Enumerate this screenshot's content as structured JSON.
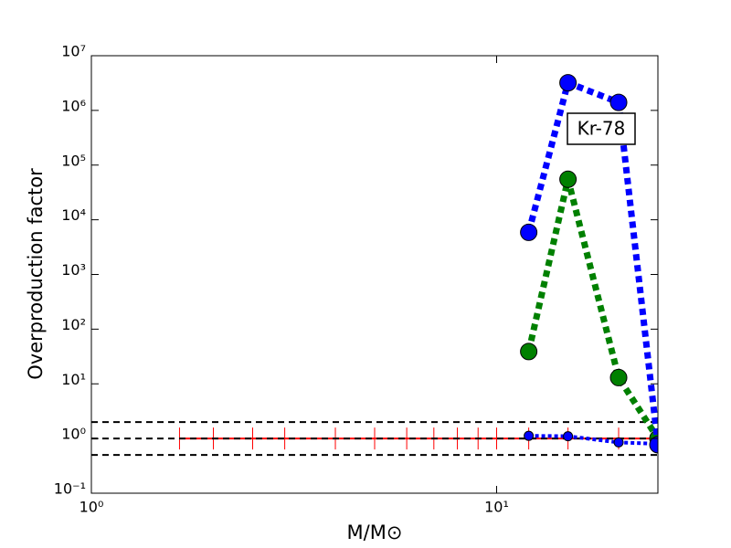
{
  "chart_data": {
    "type": "line",
    "xlabel": "M/M⊙",
    "ylabel": "Overproduction factor",
    "xscale": "log",
    "yscale": "log",
    "xlim": [
      1,
      25
    ],
    "ylim": [
      0.1,
      10000000
    ],
    "xticks": [
      {
        "value": 1,
        "label": "10⁰"
      },
      {
        "value": 10,
        "label": "10¹"
      }
    ],
    "yticks": [
      {
        "value": 0.1,
        "label": "10⁻¹"
      },
      {
        "value": 1,
        "label": "10⁰"
      },
      {
        "value": 10,
        "label": "10¹"
      },
      {
        "value": 100,
        "label": "10²"
      },
      {
        "value": 1000,
        "label": "10³"
      },
      {
        "value": 10000,
        "label": "10⁴"
      },
      {
        "value": 100000,
        "label": "10⁵"
      },
      {
        "value": 1000000,
        "label": "10⁶"
      },
      {
        "value": 10000000,
        "label": "10⁷"
      }
    ],
    "reference_lines": [
      2,
      1,
      0.5
    ],
    "reference_color": "#000000",
    "annotation": "Kr-78",
    "series": [
      {
        "color": "#ff0000",
        "linestyle": "solid",
        "marker": "|",
        "x": [
          1.65,
          2,
          2.5,
          3,
          4,
          5,
          6,
          7,
          8,
          9,
          10,
          12,
          15,
          20,
          25
        ],
        "values": [
          1,
          1,
          1,
          1,
          1,
          1,
          1,
          1,
          1,
          1,
          1,
          1,
          1,
          1,
          1
        ]
      },
      {
        "color": "#0000ff",
        "linestyle": "dotted",
        "marker": "o",
        "size": "small",
        "x": [
          12,
          15,
          20,
          25
        ],
        "values": [
          1.12,
          1.1,
          0.85,
          0.8
        ]
      },
      {
        "color": "#008000",
        "linestyle": "dotted",
        "marker": "o",
        "size": "large",
        "x": [
          12,
          15,
          20,
          25
        ],
        "values": [
          39,
          55000,
          13,
          1.0
        ]
      },
      {
        "color": "#0000ff",
        "linestyle": "dotted",
        "marker": "o",
        "size": "large",
        "x": [
          12,
          15,
          20,
          25
        ],
        "values": [
          5900,
          3200000,
          1400000,
          0.77
        ]
      }
    ]
  }
}
